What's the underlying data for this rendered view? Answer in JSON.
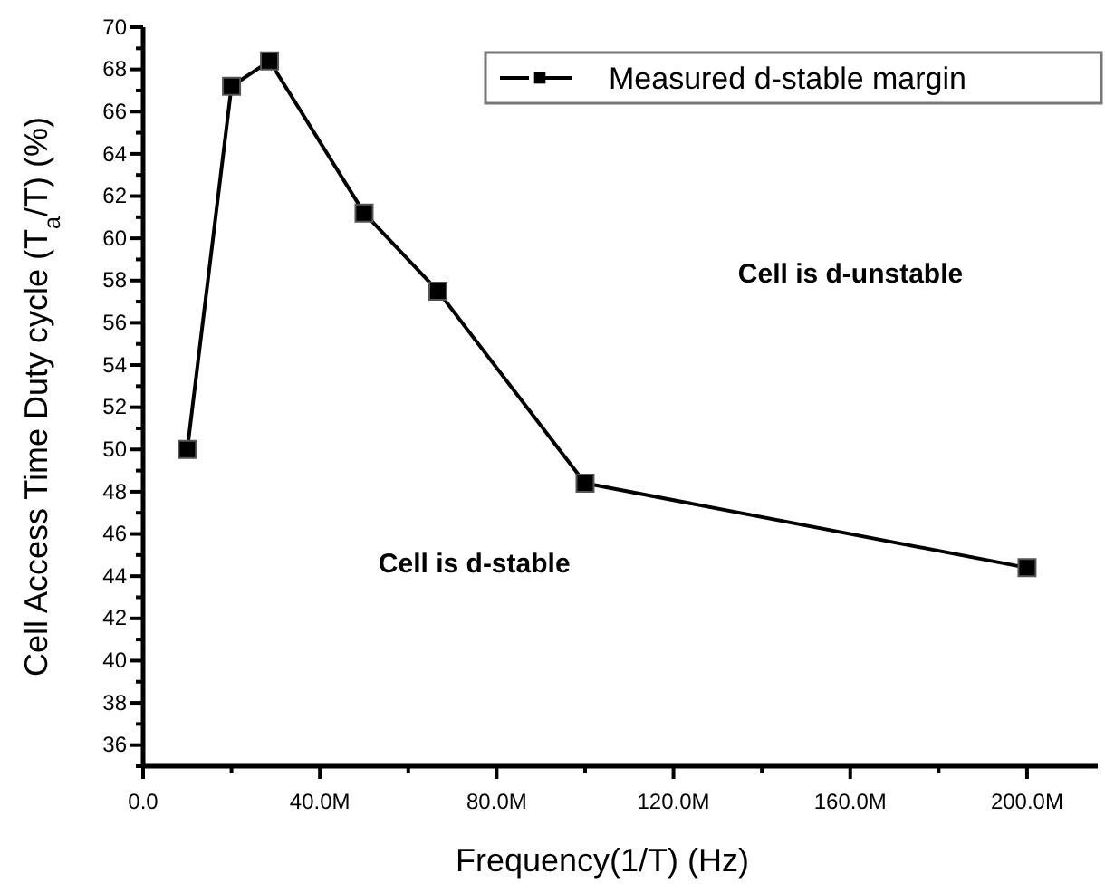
{
  "chart_data": {
    "type": "line",
    "xlabel": "Frequency(1/T) (Hz)",
    "ylabel": "Cell Access Time Duty cycle (T$_{a}$/T) (%)",
    "x": [
      10000000,
      20000000,
      28600000,
      50000000,
      66700000,
      100000000,
      200000000
    ],
    "series": [
      {
        "name": "Measured d-stable margin",
        "color": "#000000",
        "values": [
          50,
          67.2,
          68.4,
          61.2,
          57.5,
          48.4,
          44.4
        ]
      }
    ],
    "xlim": [
      0,
      216000000
    ],
    "xticks": [
      {
        "value": 0,
        "label": "0.0"
      },
      {
        "value": 20000000,
        "label": null
      },
      {
        "value": 40000000,
        "label": "40.0M"
      },
      {
        "value": 60000000,
        "label": null
      },
      {
        "value": 80000000,
        "label": "80.0M"
      },
      {
        "value": 100000000,
        "label": null
      },
      {
        "value": 120000000,
        "label": "120.0M"
      },
      {
        "value": 140000000,
        "label": null
      },
      {
        "value": 160000000,
        "label": "160.0M"
      },
      {
        "value": 180000000,
        "label": null
      },
      {
        "value": 200000000,
        "label": "200.0M"
      }
    ],
    "ylim": [
      35,
      70
    ],
    "yticks": [
      {
        "value": 35,
        "label": null
      },
      36,
      {
        "value": 37,
        "label": null
      },
      38,
      {
        "value": 39,
        "label": null
      },
      40,
      {
        "value": 41,
        "label": null
      },
      42,
      {
        "value": 43,
        "label": null
      },
      44,
      {
        "value": 45,
        "label": null
      },
      46,
      {
        "value": 47,
        "label": null
      },
      48,
      {
        "value": 49,
        "label": null
      },
      50,
      {
        "value": 51,
        "label": null
      },
      52,
      {
        "value": 53,
        "label": null
      },
      54,
      {
        "value": 55,
        "label": null
      },
      56,
      {
        "value": 57,
        "label": null
      },
      58,
      {
        "value": 59,
        "label": null
      },
      60,
      {
        "value": 61,
        "label": null
      },
      62,
      {
        "value": 63,
        "label": null
      },
      64,
      {
        "value": 65,
        "label": null
      },
      66,
      {
        "value": 67,
        "label": null
      },
      68,
      {
        "value": 69,
        "label": null
      },
      70
    ],
    "annotations": [
      "Cell is d-stable",
      "Cell is d-unstable"
    ],
    "marker": "square",
    "line_style": "solid",
    "legend": "top right",
    "grid": false
  }
}
